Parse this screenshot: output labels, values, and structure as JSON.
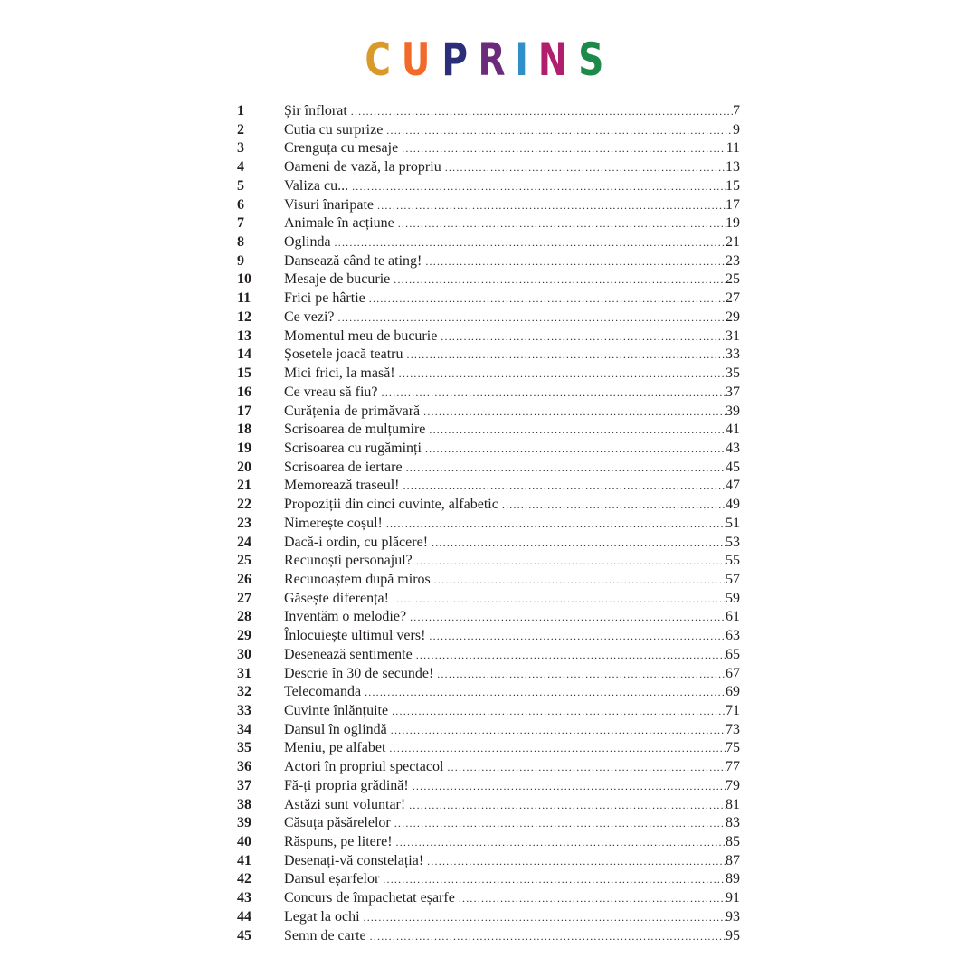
{
  "title": {
    "letters": [
      "C",
      "U",
      "P",
      "R",
      "I",
      "N",
      "S"
    ],
    "colors": [
      "#d99a2b",
      "#f26a2a",
      "#2b2f7a",
      "#6b2a7a",
      "#2f8fc9",
      "#b21e6e",
      "#1e8a4a"
    ]
  },
  "entries": [
    {
      "n": "1",
      "t": "Șir înflorat",
      "p": "7"
    },
    {
      "n": "2",
      "t": "Cutia cu surprize",
      "p": "9"
    },
    {
      "n": "3",
      "t": "Crenguța cu mesaje",
      "p": "11"
    },
    {
      "n": "4",
      "t": "Oameni de vază, la propriu",
      "p": "13"
    },
    {
      "n": "5",
      "t": "Valiza cu...",
      "p": "15"
    },
    {
      "n": "6",
      "t": "Visuri înaripate",
      "p": "17"
    },
    {
      "n": "7",
      "t": "Animale în acțiune",
      "p": "19"
    },
    {
      "n": "8",
      "t": "Oglinda",
      "p": "21"
    },
    {
      "n": "9",
      "t": "Dansează când te ating!",
      "p": "23"
    },
    {
      "n": "10",
      "t": "Mesaje de bucurie",
      "p": "25"
    },
    {
      "n": "11",
      "t": "Frici pe hârtie",
      "p": "27"
    },
    {
      "n": "12",
      "t": "Ce vezi?",
      "p": "29"
    },
    {
      "n": "13",
      "t": "Momentul meu de bucurie",
      "p": "31"
    },
    {
      "n": "14",
      "t": "Șosetele joacă teatru",
      "p": "33"
    },
    {
      "n": "15",
      "t": "Mici frici, la masă!",
      "p": "35"
    },
    {
      "n": "16",
      "t": "Ce vreau să fiu?",
      "p": "37"
    },
    {
      "n": "17",
      "t": "Curățenia de primăvară",
      "p": "39"
    },
    {
      "n": "18",
      "t": "Scrisoarea de mulțumire",
      "p": "41"
    },
    {
      "n": "19",
      "t": "Scrisoarea cu rugăminți",
      "p": "43"
    },
    {
      "n": "20",
      "t": "Scrisoarea de iertare",
      "p": "45"
    },
    {
      "n": "21",
      "t": "Memorează traseul!",
      "p": "47"
    },
    {
      "n": "22",
      "t": "Propoziții din cinci cuvinte, alfabetic",
      "p": "49"
    },
    {
      "n": "23",
      "t": "Nimerește coșul!",
      "p": "51"
    },
    {
      "n": "24",
      "t": "Dacă-i ordin, cu plăcere!",
      "p": "53"
    },
    {
      "n": "25",
      "t": "Recunoști personajul?",
      "p": "55"
    },
    {
      "n": "26",
      "t": "Recunoaștem după miros",
      "p": "57"
    },
    {
      "n": "27",
      "t": "Găsește diferența!",
      "p": "59"
    },
    {
      "n": "28",
      "t": "Inventăm o melodie?",
      "p": "61"
    },
    {
      "n": "29",
      "t": "Înlocuiește ultimul vers!",
      "p": "63"
    },
    {
      "n": "30",
      "t": "Desenează sentimente",
      "p": "65"
    },
    {
      "n": "31",
      "t": "Descrie în 30 de secunde!",
      "p": "67"
    },
    {
      "n": "32",
      "t": "Telecomanda",
      "p": "69"
    },
    {
      "n": "33",
      "t": "Cuvinte înlănțuite",
      "p": "71"
    },
    {
      "n": "34",
      "t": "Dansul în oglindă",
      "p": "73"
    },
    {
      "n": "35",
      "t": "Meniu, pe alfabet",
      "p": "75"
    },
    {
      "n": "36",
      "t": "Actori în propriul spectacol",
      "p": "77"
    },
    {
      "n": "37",
      "t": "Fă-ți propria grădină!",
      "p": "79"
    },
    {
      "n": "38",
      "t": "Astăzi sunt voluntar!",
      "p": "81"
    },
    {
      "n": "39",
      "t": "Căsuța păsărelelor",
      "p": "83"
    },
    {
      "n": "40",
      "t": "Răspuns, pe litere!",
      "p": "85"
    },
    {
      "n": "41",
      "t": "Desenați-vă constelația!",
      "p": "87"
    },
    {
      "n": "42",
      "t": "Dansul eșarfelor",
      "p": "89"
    },
    {
      "n": "43",
      "t": "Concurs de împachetat eșarfe",
      "p": "91"
    },
    {
      "n": "44",
      "t": "Legat la ochi",
      "p": "93"
    },
    {
      "n": "45",
      "t": "Semn de carte",
      "p": "95"
    }
  ]
}
